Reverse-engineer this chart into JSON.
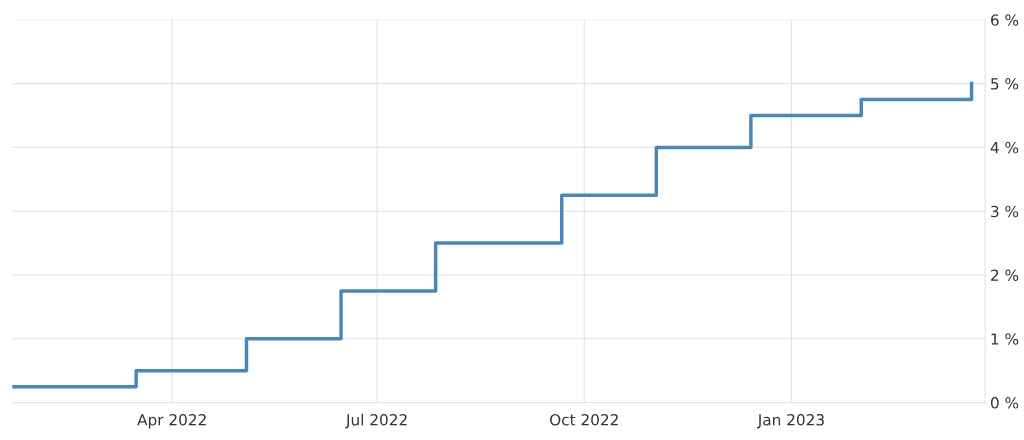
{
  "chart_data": {
    "type": "step",
    "x": [
      "2022-01-20",
      "2022-03-16",
      "2022-05-04",
      "2022-06-15",
      "2022-07-27",
      "2022-09-21",
      "2022-11-02",
      "2022-12-14",
      "2023-02-01",
      "2023-03-22"
    ],
    "series": [
      {
        "color": "#4a86b8",
        "values": [
          0.25,
          0.5,
          1.0,
          1.75,
          2.5,
          3.25,
          4.0,
          4.5,
          4.75,
          5.0
        ]
      }
    ],
    "xlim": [
      "2022-01-20",
      "2023-03-28"
    ],
    "xticks": [
      {
        "value": "2022-04-01",
        "label": "Apr 2022"
      },
      {
        "value": "2022-07-01",
        "label": "Jul 2022"
      },
      {
        "value": "2022-10-01",
        "label": "Oct 2022"
      },
      {
        "value": "2023-01-01",
        "label": "Jan 2023"
      }
    ],
    "ylim": [
      0,
      6
    ],
    "yticks": [
      {
        "value": 0,
        "label": "0 %"
      },
      {
        "value": 1,
        "label": "1 %"
      },
      {
        "value": 2,
        "label": "2 %"
      },
      {
        "value": 3,
        "label": "3 %"
      },
      {
        "value": 4,
        "label": "4 %"
      },
      {
        "value": 5,
        "label": "5 %"
      },
      {
        "value": 6,
        "label": "6 %"
      }
    ],
    "grid": true,
    "line_style": "solid",
    "marker": "none"
  }
}
